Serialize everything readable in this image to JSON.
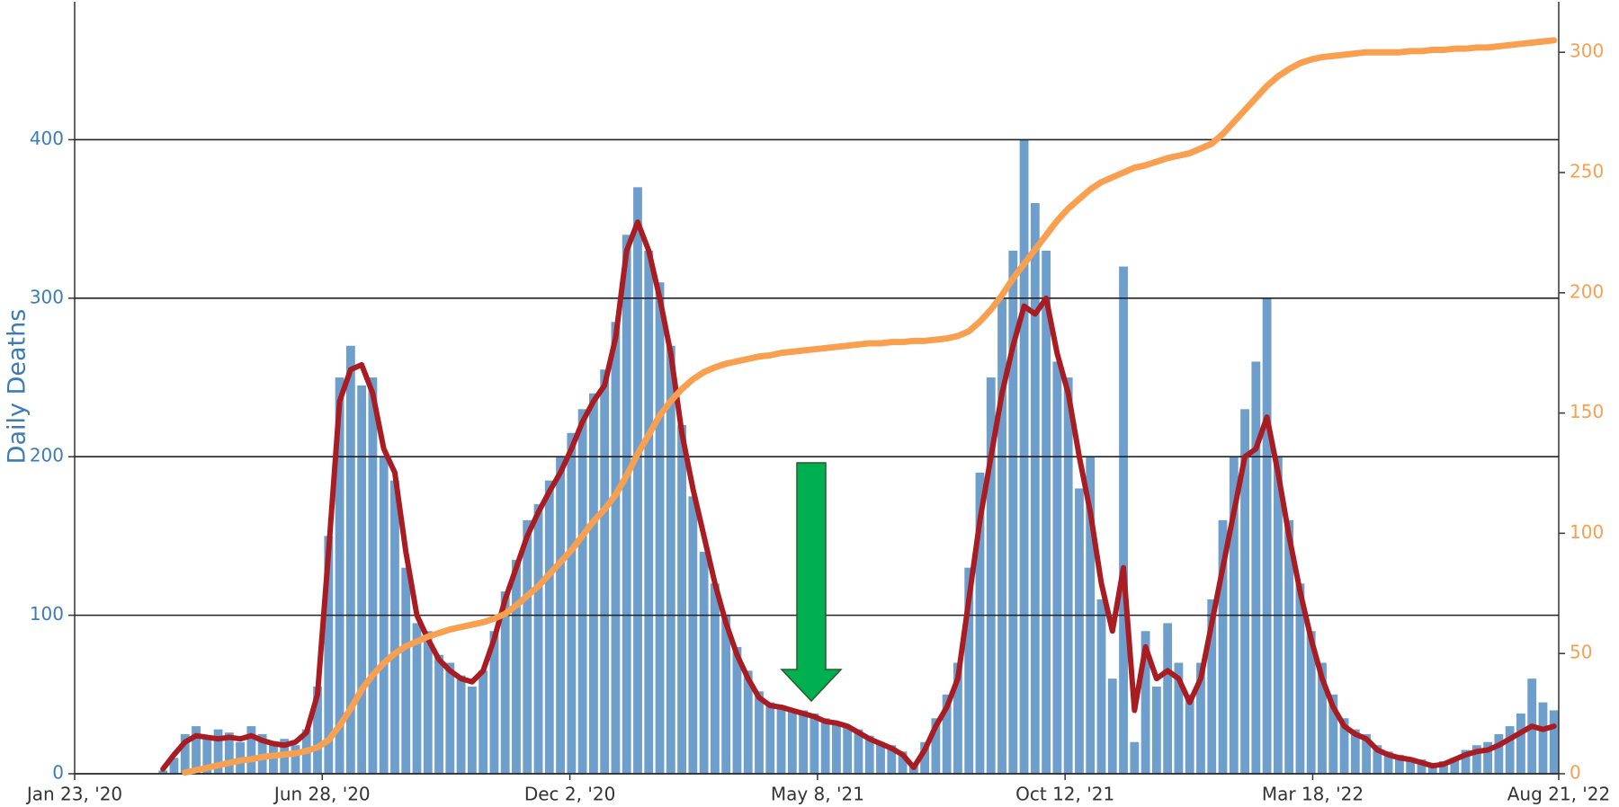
{
  "chart_data": {
    "type": "bar",
    "y_label": "Daily Deaths",
    "x": [
      "2020-03-19",
      "2020-03-26",
      "2020-04-02",
      "2020-04-09",
      "2020-04-16",
      "2020-04-23",
      "2020-04-30",
      "2020-05-07",
      "2020-05-14",
      "2020-05-21",
      "2020-05-28",
      "2020-06-04",
      "2020-06-11",
      "2020-06-18",
      "2020-06-25",
      "2020-07-02",
      "2020-07-09",
      "2020-07-16",
      "2020-07-23",
      "2020-07-30",
      "2020-08-06",
      "2020-08-13",
      "2020-08-20",
      "2020-08-27",
      "2020-09-03",
      "2020-09-10",
      "2020-09-17",
      "2020-09-24",
      "2020-10-01",
      "2020-10-08",
      "2020-10-15",
      "2020-10-22",
      "2020-10-29",
      "2020-11-05",
      "2020-11-12",
      "2020-11-19",
      "2020-11-26",
      "2020-12-03",
      "2020-12-10",
      "2020-12-17",
      "2020-12-24",
      "2020-12-31",
      "2021-01-07",
      "2021-01-14",
      "2021-01-21",
      "2021-01-28",
      "2021-02-04",
      "2021-02-11",
      "2021-02-18",
      "2021-02-25",
      "2021-03-04",
      "2021-03-11",
      "2021-03-18",
      "2021-03-25",
      "2021-04-01",
      "2021-04-08",
      "2021-04-15",
      "2021-04-22",
      "2021-04-29",
      "2021-05-06",
      "2021-05-13",
      "2021-05-20",
      "2021-05-27",
      "2021-06-03",
      "2021-06-10",
      "2021-06-17",
      "2021-06-24",
      "2021-07-01",
      "2021-07-08",
      "2021-07-15",
      "2021-07-22",
      "2021-07-29",
      "2021-08-05",
      "2021-08-12",
      "2021-08-19",
      "2021-08-26",
      "2021-09-02",
      "2021-09-09",
      "2021-09-16",
      "2021-09-23",
      "2021-09-30",
      "2021-10-07",
      "2021-10-14",
      "2021-10-21",
      "2021-10-28",
      "2021-11-04",
      "2021-11-11",
      "2021-11-18",
      "2021-11-25",
      "2021-12-02",
      "2021-12-09",
      "2021-12-16",
      "2021-12-23",
      "2021-12-30",
      "2022-01-06",
      "2022-01-13",
      "2022-01-20",
      "2022-01-27",
      "2022-02-03",
      "2022-02-10",
      "2022-02-17",
      "2022-02-24",
      "2022-03-03",
      "2022-03-10",
      "2022-03-17",
      "2022-03-24",
      "2022-03-31",
      "2022-04-07",
      "2022-04-14",
      "2022-04-21",
      "2022-04-28",
      "2022-05-05",
      "2022-05-12",
      "2022-05-19",
      "2022-05-26",
      "2022-06-02",
      "2022-06-09",
      "2022-06-16",
      "2022-06-23",
      "2022-06-30",
      "2022-07-07",
      "2022-07-14",
      "2022-07-21",
      "2022-07-28",
      "2022-08-04",
      "2022-08-11",
      "2022-08-18"
    ],
    "series": [
      {
        "type": "bar",
        "color": "#6e9fcc",
        "values": [
          2,
          10,
          25,
          30,
          22,
          28,
          26,
          20,
          30,
          25,
          20,
          22,
          18,
          28,
          55,
          150,
          250,
          270,
          245,
          250,
          200,
          185,
          130,
          95,
          90,
          75,
          70,
          62,
          55,
          65,
          90,
          115,
          135,
          160,
          170,
          185,
          200,
          215,
          230,
          240,
          255,
          285,
          340,
          370,
          330,
          310,
          270,
          220,
          175,
          140,
          120,
          100,
          80,
          65,
          52,
          45,
          42,
          40,
          40,
          38,
          35,
          32,
          30,
          28,
          24,
          20,
          18,
          14,
          6,
          20,
          35,
          50,
          70,
          130,
          190,
          250,
          300,
          330,
          400,
          360,
          330,
          260,
          250,
          180,
          200,
          110,
          60,
          320,
          20,
          90,
          55,
          95,
          70,
          50,
          70,
          110,
          160,
          200,
          230,
          260,
          300,
          200,
          160,
          120,
          90,
          70,
          50,
          35,
          28,
          25,
          18,
          14,
          12,
          10,
          9,
          6,
          8,
          10,
          15,
          18,
          20,
          25,
          30,
          38,
          60,
          45,
          40
        ]
      },
      {
        "type": "line",
        "color": "#a81c22",
        "values": [
          3,
          12,
          20,
          24,
          23,
          22,
          23,
          22,
          24,
          21,
          19,
          18,
          20,
          26,
          50,
          140,
          235,
          255,
          258,
          240,
          205,
          190,
          140,
          100,
          85,
          72,
          65,
          60,
          58,
          65,
          85,
          110,
          130,
          150,
          165,
          178,
          190,
          205,
          222,
          235,
          245,
          275,
          330,
          348,
          330,
          300,
          265,
          215,
          180,
          150,
          120,
          95,
          75,
          60,
          48,
          43,
          42,
          40,
          38,
          36,
          33,
          32,
          30,
          26,
          22,
          19,
          16,
          12,
          4,
          15,
          30,
          42,
          60,
          110,
          160,
          200,
          240,
          270,
          295,
          290,
          300,
          265,
          240,
          200,
          165,
          120,
          90,
          130,
          40,
          80,
          60,
          65,
          60,
          45,
          60,
          95,
          130,
          165,
          200,
          205,
          225,
          190,
          150,
          115,
          85,
          60,
          42,
          30,
          25,
          22,
          15,
          12,
          10,
          9,
          7,
          5,
          6,
          9,
          12,
          14,
          15,
          18,
          22,
          26,
          30,
          28,
          30
        ]
      },
      {
        "type": "line",
        "axis": "y2",
        "color": "#f9a050",
        "values": [
          null,
          null,
          0.5,
          1.5,
          2.5,
          3.5,
          4.5,
          5.5,
          6,
          7,
          7.5,
          8,
          8.5,
          9.5,
          11,
          14,
          20,
          27,
          35,
          41,
          46,
          50,
          53,
          55,
          57,
          58.5,
          60,
          61,
          62,
          63,
          64.5,
          66.5,
          70,
          74,
          78,
          83,
          88,
          93,
          99,
          105,
          110,
          116,
          124,
          133,
          141,
          149,
          155,
          160,
          164,
          167,
          169,
          170.5,
          171.5,
          172.5,
          173.5,
          174,
          175,
          175.5,
          176,
          176.5,
          177,
          177.5,
          178,
          178.5,
          179,
          179,
          179.5,
          179.5,
          180,
          180,
          180.5,
          181,
          182,
          184,
          188,
          193,
          199,
          206,
          212,
          218,
          224,
          230,
          235,
          239,
          243,
          246,
          248,
          250,
          252,
          253,
          254.5,
          256,
          257,
          258,
          260,
          262,
          266,
          271,
          276,
          281,
          286,
          290,
          293,
          295.5,
          297,
          298,
          298.5,
          299,
          299.5,
          300,
          300,
          300,
          300,
          300.5,
          300.5,
          301,
          301,
          301.5,
          301.5,
          302,
          302,
          302.5,
          303,
          303.5,
          304,
          304.5,
          305
        ]
      }
    ],
    "xlim": [
      "2020-01-23",
      "2022-08-21"
    ],
    "xticks": [
      {
        "value": "2020-01-23",
        "label": "Jan 23, '20"
      },
      {
        "value": "2020-06-28",
        "label": "Jun 28, '20"
      },
      {
        "value": "2020-12-02",
        "label": "Dec 2, '20"
      },
      {
        "value": "2021-05-08",
        "label": "May 8, '21"
      },
      {
        "value": "2021-10-12",
        "label": "Oct 12, '21"
      },
      {
        "value": "2022-03-18",
        "label": "Mar 18, '22"
      },
      {
        "value": "2022-08-21",
        "label": "Aug 21, '22"
      }
    ],
    "ylim": [
      0,
      487
    ],
    "yticks": [
      0,
      100,
      200,
      300,
      400
    ],
    "y2lim": [
      0,
      321
    ],
    "y2ticks": [
      0,
      50,
      100,
      150,
      200,
      250,
      300
    ],
    "grid": true,
    "y_color": "#3b7cb8",
    "y2_color": "#f9a050"
  }
}
